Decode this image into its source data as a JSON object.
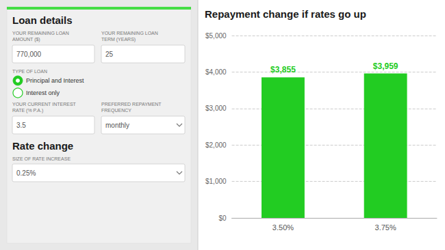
{
  "chart_data": {
    "type": "bar",
    "title": "Repayment change if rates go up",
    "categories": [
      "3.50%",
      "3.75%"
    ],
    "values": [
      3855,
      3959
    ],
    "value_labels": [
      "$3,855",
      "$3,959"
    ],
    "data_labels": true,
    "color": "#22cc22",
    "ylim": [
      0,
      5000
    ],
    "yticks": [
      {
        "value": 0,
        "label": "$0"
      },
      {
        "value": 1000,
        "label": "$1,000"
      },
      {
        "value": 2000,
        "label": "$2,000"
      },
      {
        "value": 3000,
        "label": "$3,000"
      },
      {
        "value": 4000,
        "label": "$4,000"
      },
      {
        "value": 5000,
        "label": "$5,000"
      }
    ],
    "grid": true,
    "annotations": [
      "Loan details",
      "YOUR REMAINING LOAN\nAMOUNT ($)",
      "770,000",
      "YOUR REMAINING LOAN\nTERM (YEARS)",
      "25",
      "TYPE OF LOAN",
      "Principal and Interest",
      "Interest only",
      "YOUR CURRENT INTEREST\nRATE (% P.A.)",
      "3.5",
      "PREFERRED REPAYMENT\nFREQUENCY",
      "monthly",
      "Rate change",
      "SIZE OF RATE INCREASE",
      "0.25%"
    ]
  }
}
